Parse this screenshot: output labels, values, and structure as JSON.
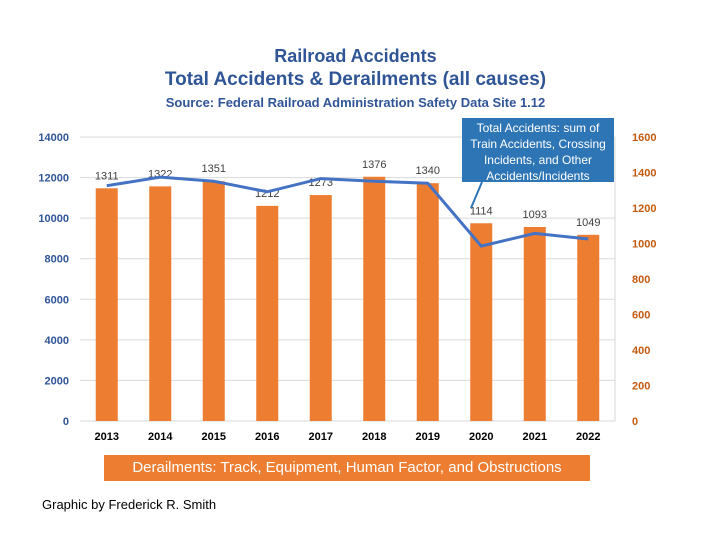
{
  "title": "Railroad Accidents",
  "subtitle": "Total Accidents & Derailments (all causes)",
  "source": "Source: Federal Railroad Administration  Safety Data Site 1.12",
  "callout": "Total Accidents: sum of Train Accidents, Crossing Incidents, and Other Accidents/Incidents",
  "legend_label": "Derailments: Track, Equipment, Human Factor, and Obstructions",
  "credit": "Graphic by Frederick R. Smith",
  "colors": {
    "bar": "#ed7d31",
    "line": "#4472c4",
    "title": "#2f5597",
    "callout": "#2e75b6",
    "right_axis": "#c55a11"
  },
  "chart_data": {
    "type": "bar",
    "categories": [
      "2013",
      "2014",
      "2015",
      "2016",
      "2017",
      "2018",
      "2019",
      "2020",
      "2021",
      "2022"
    ],
    "series": [
      {
        "values": [
          1311,
          1322,
          1351,
          1212,
          1273,
          1376,
          1340,
          1114,
          1093,
          1049
        ],
        "axis": "right",
        "chart_type": "bar",
        "data_labels": true
      },
      {
        "values": [
          11600,
          12020,
          11820,
          11300,
          11950,
          11820,
          11720,
          8620,
          9250,
          8970
        ],
        "axis": "left",
        "chart_type": "line"
      }
    ],
    "ylim_left": [
      0,
      14000
    ],
    "yticks_left": [
      0,
      2000,
      4000,
      6000,
      8000,
      10000,
      12000,
      14000
    ],
    "ylim_right": [
      0,
      1600
    ],
    "yticks_right": [
      0,
      200,
      400,
      600,
      800,
      1000,
      1200,
      1400,
      1600
    ],
    "grid": true
  }
}
